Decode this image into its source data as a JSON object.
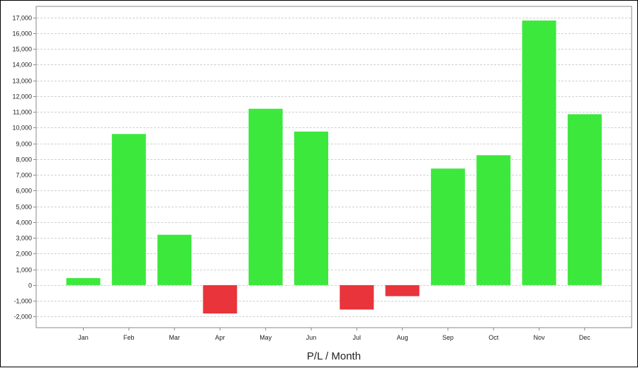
{
  "chart_data": {
    "type": "bar",
    "title": "",
    "xlabel": "P/L / Month",
    "ylabel": "",
    "categories": [
      "Jan",
      "Feb",
      "Mar",
      "Apr",
      "May",
      "Jun",
      "Jul",
      "Aug",
      "Sep",
      "Oct",
      "Nov",
      "Dec"
    ],
    "values": [
      450,
      9600,
      3200,
      -1800,
      11200,
      9750,
      -1550,
      -700,
      7400,
      8250,
      16800,
      10850
    ],
    "ylim": [
      -2700,
      17700
    ],
    "yticks": [
      -2000,
      -1000,
      0,
      1000,
      2000,
      3000,
      4000,
      5000,
      6000,
      7000,
      8000,
      9000,
      10000,
      11000,
      12000,
      13000,
      14000,
      15000,
      16000,
      17000
    ],
    "ytick_labels": [
      "-2,000",
      "-1,000",
      "0",
      "1,000",
      "2,000",
      "3,000",
      "4,000",
      "5,000",
      "6,000",
      "7,000",
      "8,000",
      "9,000",
      "10,000",
      "11,000",
      "12,000",
      "13,000",
      "14,000",
      "15,000",
      "16,000",
      "17,000"
    ],
    "grid": true,
    "legend": "none",
    "colors": {
      "positive": "#3DE83D",
      "negative": "#E8343A",
      "grid": "#D0D0D0",
      "axis": "#888888"
    }
  }
}
